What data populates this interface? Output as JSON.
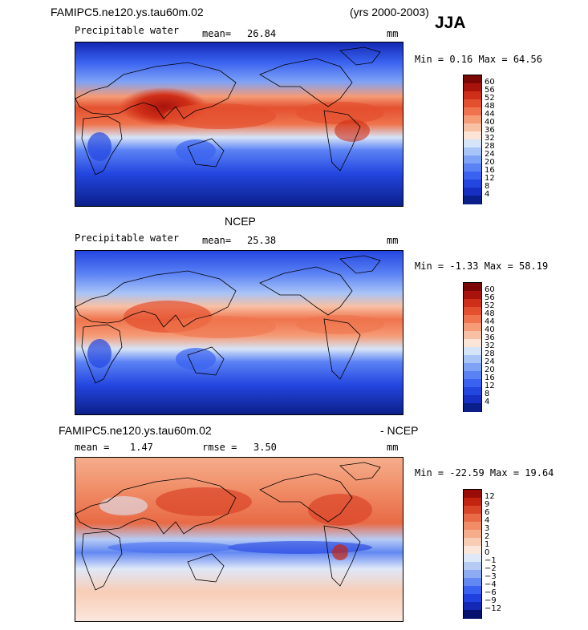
{
  "season": "JJA",
  "panels": [
    {
      "title": "FAMIPC5.ne120.ys.tau60m.02",
      "years": "(yrs 2000-2003)",
      "variable": "Precipitable water",
      "mean_label": "mean=",
      "mean_value": "26.84",
      "units": "mm",
      "minmax": "Min =   0.16 Max =  64.56",
      "colorbar_ticks": [
        "60",
        "56",
        "52",
        "48",
        "44",
        "40",
        "36",
        "32",
        "28",
        "24",
        "20",
        "16",
        "12",
        "8",
        "4"
      ],
      "colors": [
        "#0b1f8a",
        "#1730c4",
        "#2446e0",
        "#3a62f0",
        "#5b82f5",
        "#7ea2f6",
        "#a9c4f6",
        "#d6e4f8",
        "#fbe4d6",
        "#f8c0a4",
        "#f59b76",
        "#ef744d",
        "#e4502f",
        "#cf2f18",
        "#a9130c",
        "#7a0606"
      ]
    },
    {
      "title": "NCEP",
      "variable": "Precipitable water",
      "mean_label": "mean=",
      "mean_value": "25.38",
      "units": "mm",
      "minmax": "Min =  -1.33 Max =  58.19",
      "colorbar_ticks": [
        "60",
        "56",
        "52",
        "48",
        "44",
        "40",
        "36",
        "32",
        "28",
        "24",
        "20",
        "16",
        "12",
        "8",
        "4"
      ],
      "colors": [
        "#0b1f8a",
        "#1730c4",
        "#2446e0",
        "#3a62f0",
        "#5b82f5",
        "#7ea2f6",
        "#a9c4f6",
        "#d6e4f8",
        "#fbe4d6",
        "#f8c0a4",
        "#f59b76",
        "#ef744d",
        "#e4502f",
        "#cf2f18",
        "#a9130c",
        "#7a0606"
      ]
    },
    {
      "title_left": "FAMIPC5.ne120.ys.tau60m.02",
      "title_right": "- NCEP",
      "mean_label": "mean =",
      "mean_value": "1.47",
      "rmse_label": "rmse =",
      "rmse_value": "3.50",
      "units": "mm",
      "minmax": "Min = -22.59 Max =  19.64",
      "colorbar_ticks": [
        "12",
        "9",
        "6",
        "4",
        "3",
        "2",
        "1",
        "0",
        "−1",
        "−2",
        "−3",
        "−4",
        "−6",
        "−9",
        "−12"
      ],
      "colors": [
        "#06126e",
        "#1328b4",
        "#2040e0",
        "#3a62f0",
        "#6388f2",
        "#8eaaf2",
        "#b6cbf4",
        "#dfe8f8",
        "#fbe6dc",
        "#f8cdb6",
        "#f5ad8c",
        "#f08c66",
        "#e86a46",
        "#da4428",
        "#c4240f",
        "#9a0c06"
      ]
    }
  ]
}
